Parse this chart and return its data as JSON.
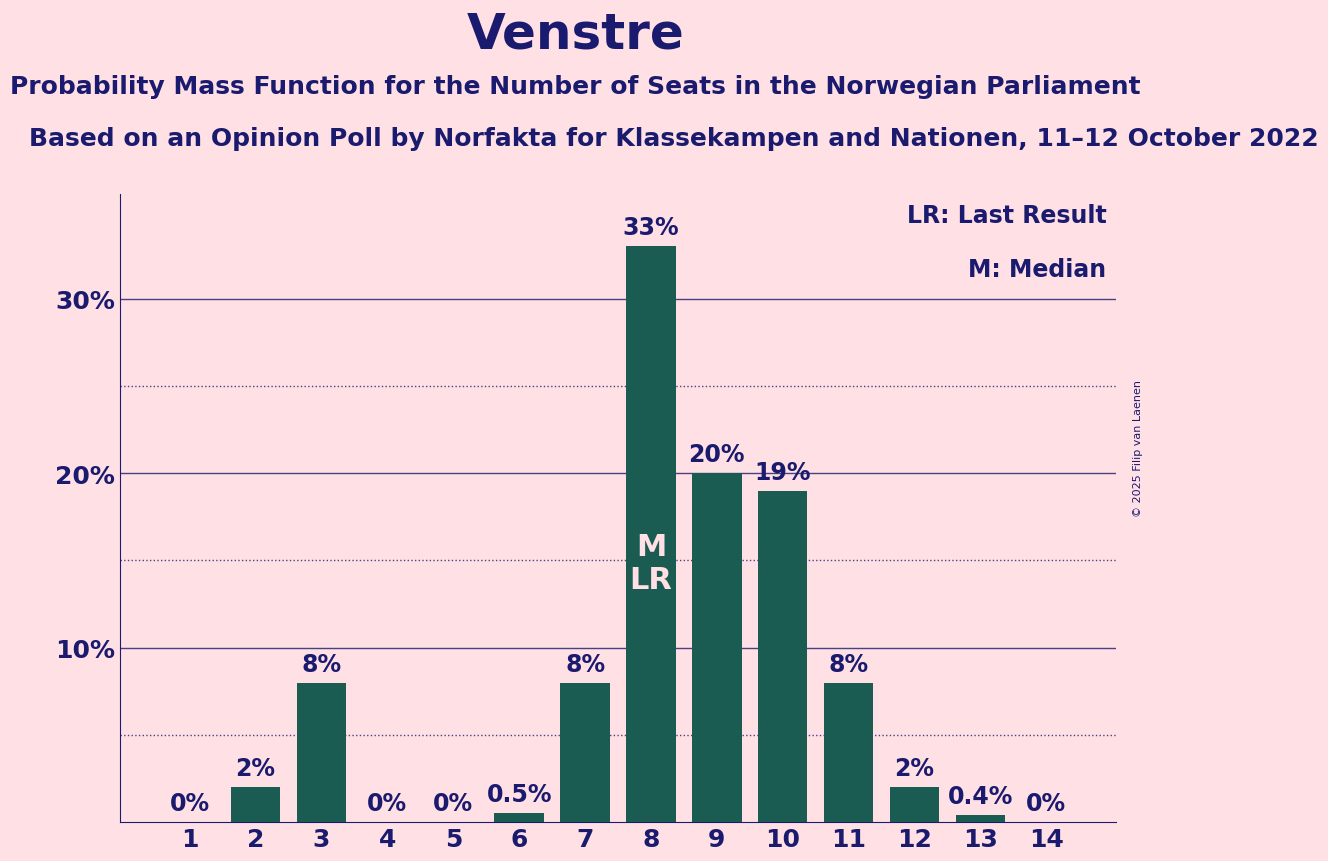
{
  "title": "Venstre",
  "subtitle": "Probability Mass Function for the Number of Seats in the Norwegian Parliament",
  "subsubtitle": "Based on an Opinion Poll by Norfakta for Klassekampen and Nationen, 11–12 October 2022",
  "copyright": "© 2025 Filip van Laenen",
  "categories": [
    1,
    2,
    3,
    4,
    5,
    6,
    7,
    8,
    9,
    10,
    11,
    12,
    13,
    14
  ],
  "values": [
    0.0,
    2.0,
    8.0,
    0.0,
    0.0,
    0.5,
    8.0,
    33.0,
    20.0,
    19.0,
    8.0,
    2.0,
    0.4,
    0.0
  ],
  "bar_color": "#1A5C52",
  "background_color": "#FFE0E4",
  "title_color": "#1A1A6E",
  "bar_label_color_inside": "#FFE0E4",
  "legend_text": [
    "LR: Last Result",
    "M: Median"
  ],
  "median_bar": 8,
  "median_label": "M",
  "lr_label": "LR",
  "ylim": [
    0,
    36
  ],
  "yticks": [
    0,
    10,
    20,
    30
  ],
  "ytick_labels": [
    "",
    "10%",
    "20%",
    "30%"
  ],
  "dotted_yticks": [
    5,
    15,
    25
  ],
  "label_values": [
    "0%",
    "2%",
    "8%",
    "0%",
    "0%",
    "0.5%",
    "8%",
    "33%",
    "20%",
    "19%",
    "8%",
    "2%",
    "0.4%",
    "0%"
  ],
  "title_fontsize": 36,
  "subtitle_fontsize": 18,
  "subsubtitle_fontsize": 18,
  "bar_label_fontsize": 17,
  "inside_label_fontsize": 22,
  "axis_tick_fontsize": 18,
  "legend_fontsize": 17,
  "copyright_fontsize": 8
}
